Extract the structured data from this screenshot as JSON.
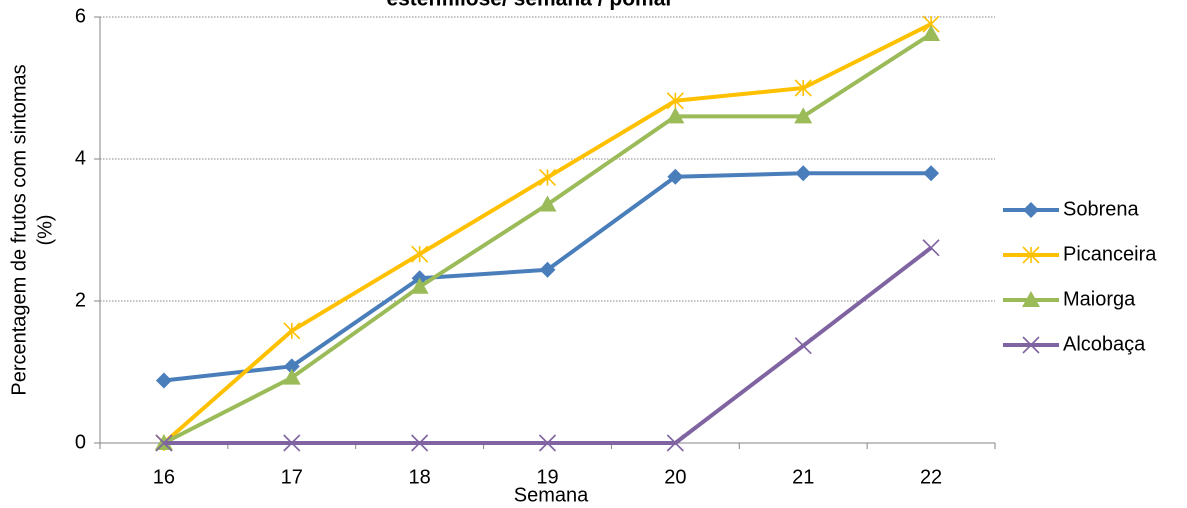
{
  "chart_data": {
    "type": "line",
    "title": "estenfiliose/ semana / pomar",
    "x_label": "Semana",
    "y_label": [
      "Percentagem de frutos com sintomas",
      "(%)"
    ],
    "categories": [
      "16",
      "17",
      "18",
      "19",
      "20",
      "21",
      "22"
    ],
    "ylim": [
      0,
      6
    ],
    "yticks": [
      0,
      2,
      4,
      6
    ],
    "grid": true,
    "legend": "right",
    "series": [
      {
        "name": "Sobrena",
        "color": "#4a7ebb",
        "marker": "diamond",
        "values": [
          0.88,
          1.08,
          2.32,
          2.44,
          3.75,
          3.8,
          3.8
        ]
      },
      {
        "name": "Picanceira",
        "color": "#ffc000",
        "marker": "star",
        "values": [
          0,
          1.58,
          2.66,
          3.74,
          4.82,
          5.0,
          5.9
        ]
      },
      {
        "name": "Maiorga",
        "color": "#9bbb59",
        "marker": "triangle",
        "values": [
          0,
          0.92,
          2.2,
          3.36,
          4.6,
          4.6,
          5.76
        ]
      },
      {
        "name": "Alcobaça",
        "color": "#8064a2",
        "marker": "x",
        "values": [
          0,
          0,
          0,
          0,
          0,
          1.37,
          2.75
        ]
      }
    ]
  }
}
